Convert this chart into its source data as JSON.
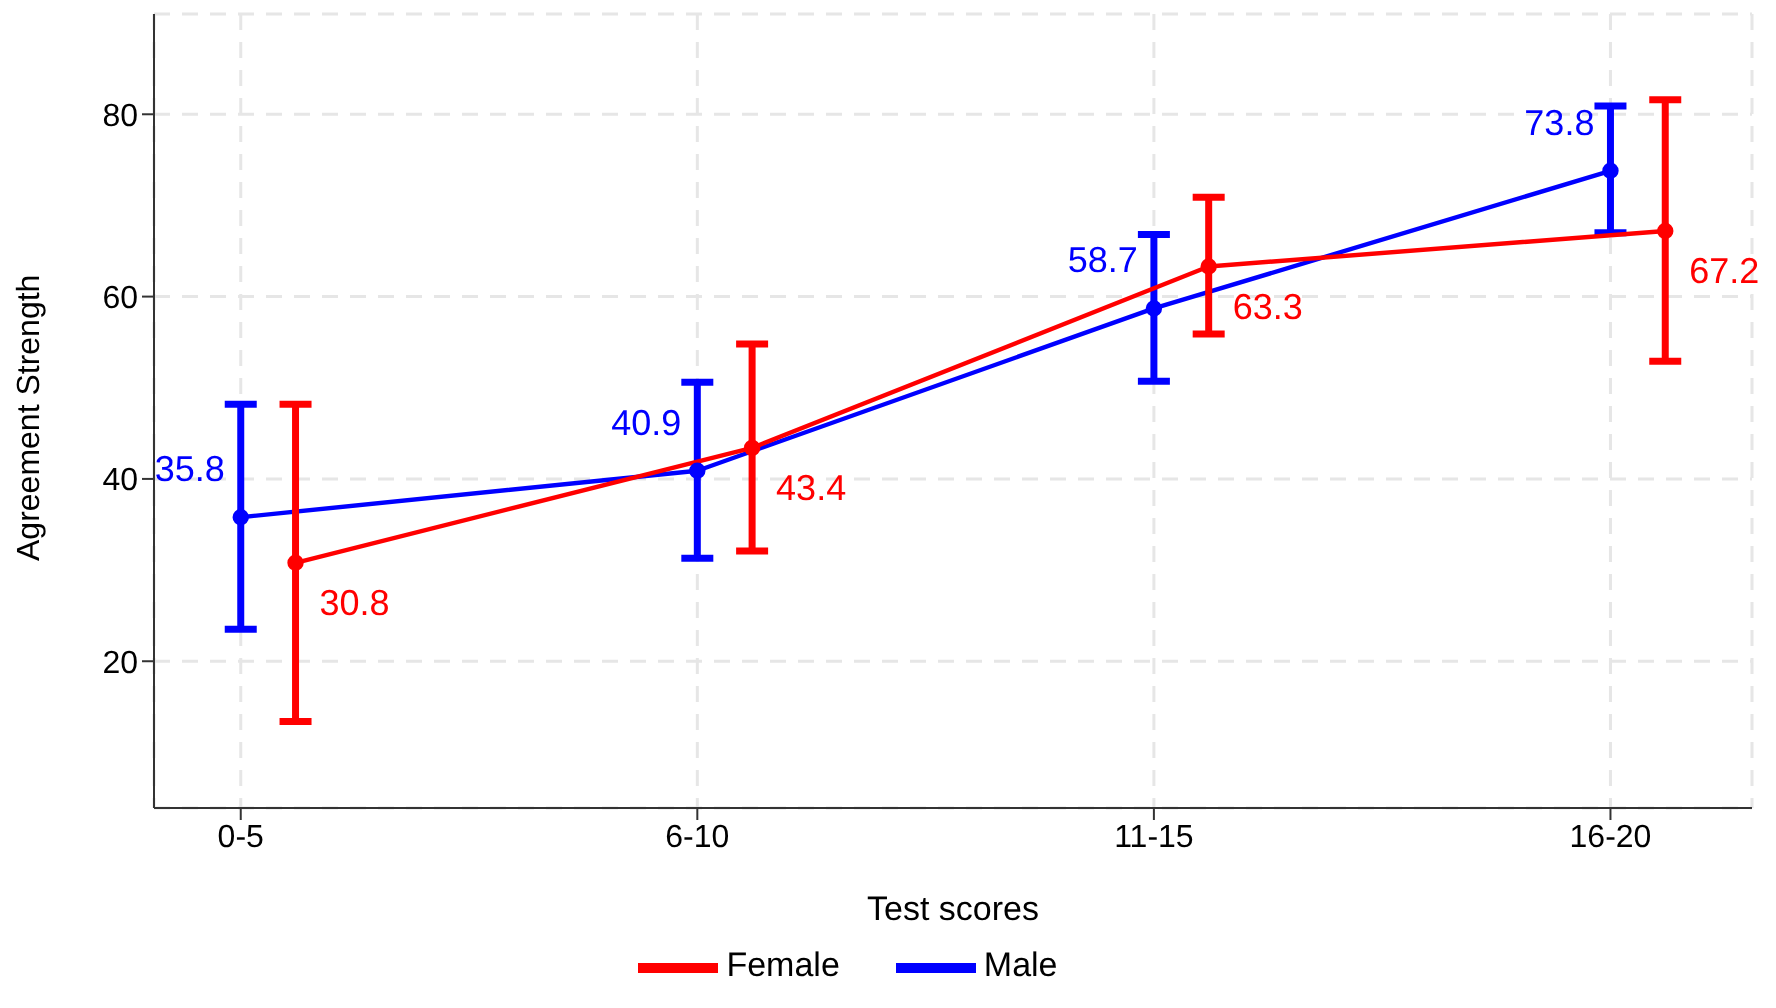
{
  "chart_data": {
    "type": "line",
    "xlabel": "Test scores",
    "ylabel": "Agreement Strength",
    "categories": [
      "0-5",
      "6-10",
      "11-15",
      "16-20"
    ],
    "ylim": [
      3.9,
      91
    ],
    "yticks": [
      20,
      40,
      60,
      80
    ],
    "series": [
      {
        "name": "Male",
        "color": "#0000ff",
        "values": [
          35.8,
          40.9,
          58.7,
          73.8
        ],
        "errors": [
          [
            23.5,
            48.2
          ],
          [
            31.3,
            50.6
          ],
          [
            50.7,
            66.8
          ],
          [
            67.0,
            80.9
          ]
        ]
      },
      {
        "name": "Female",
        "color": "#ff0000",
        "values": [
          30.8,
          43.4,
          63.3,
          67.2
        ],
        "errors": [
          [
            13.4,
            48.2
          ],
          [
            32.1,
            54.8
          ],
          [
            55.9,
            70.9
          ],
          [
            52.9,
            81.6
          ]
        ]
      }
    ],
    "data_labels": true,
    "grid": true,
    "legend": "bottom",
    "marker": "circle",
    "line_style": "solid"
  }
}
